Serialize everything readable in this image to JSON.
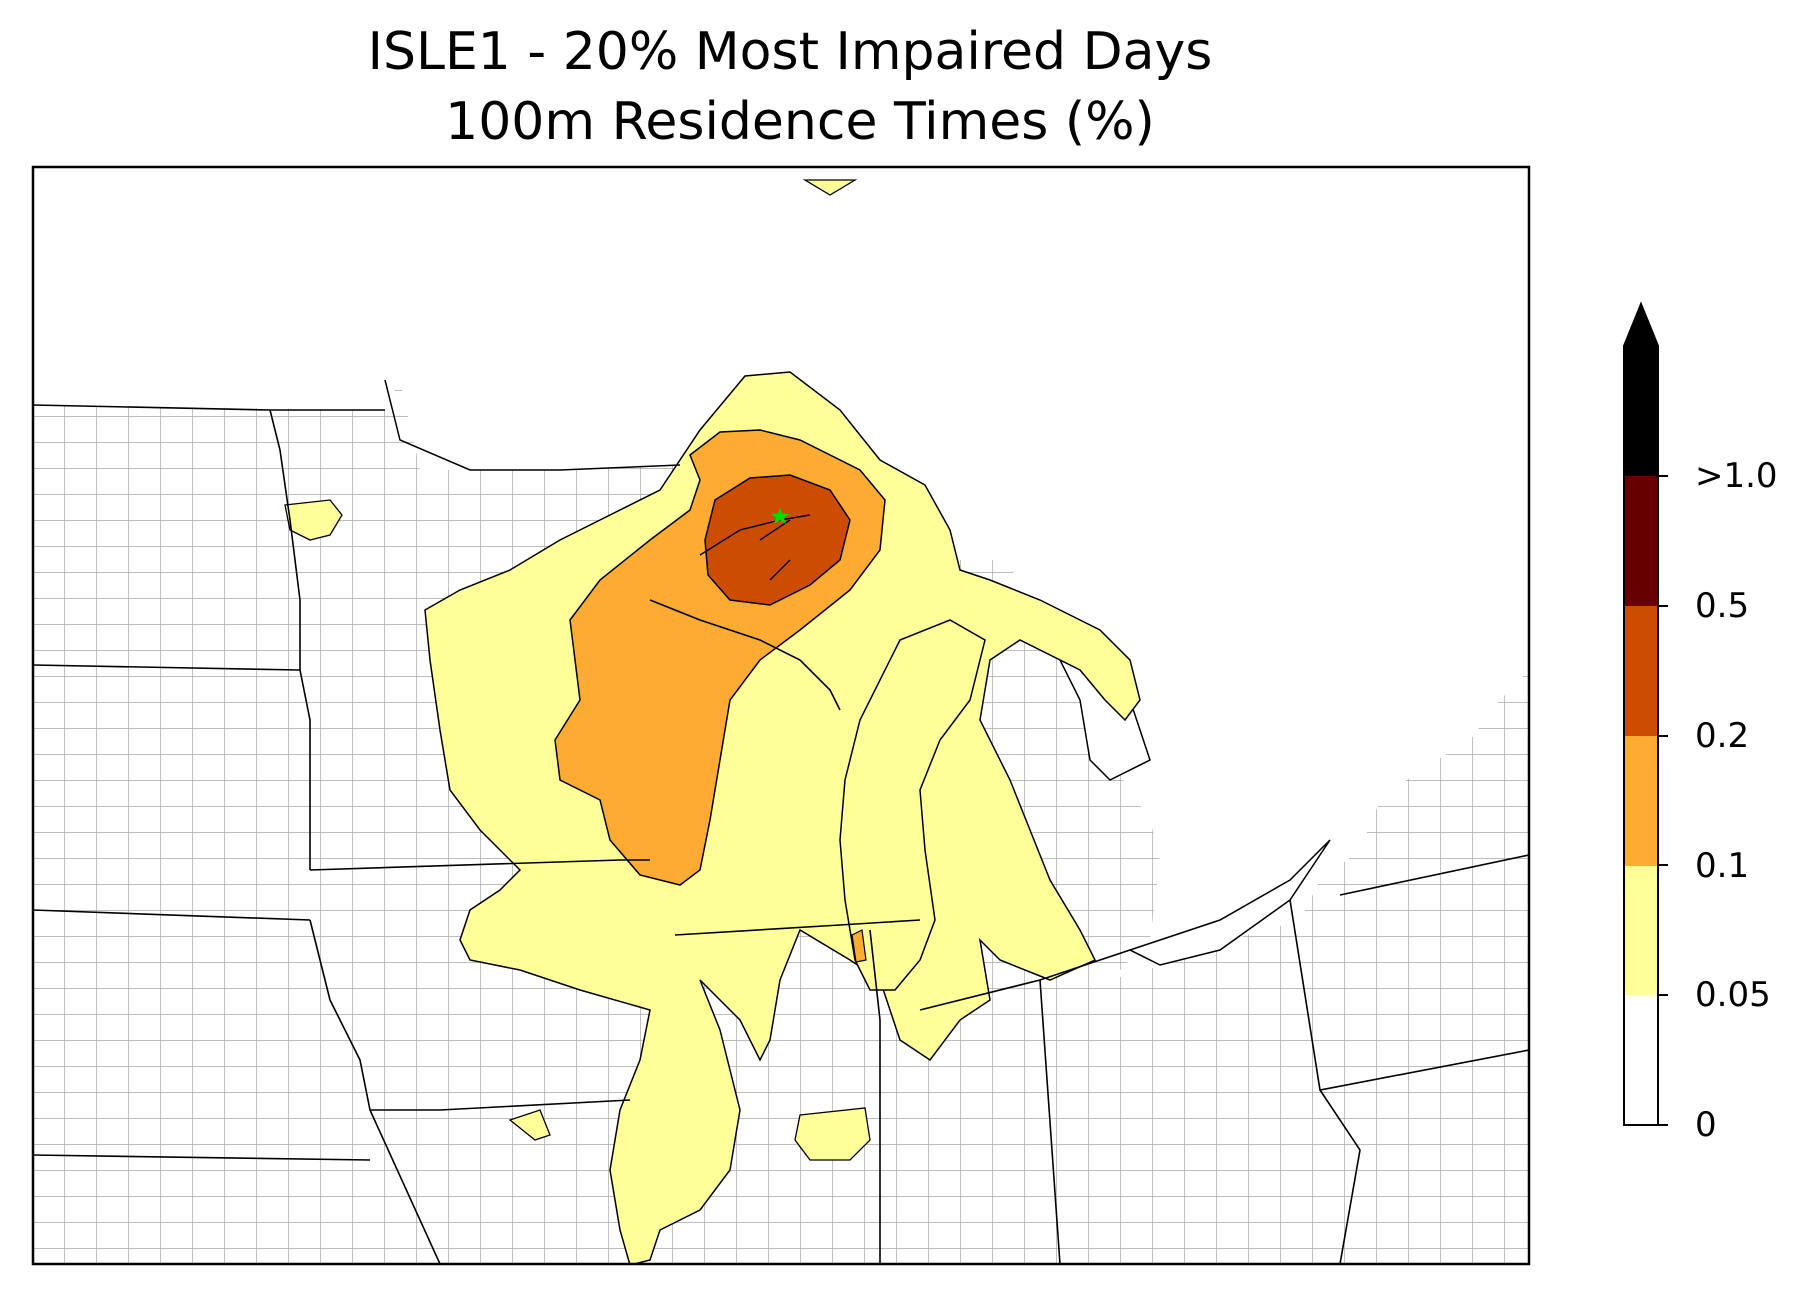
{
  "title": {
    "line1": "ISLE1 - 20% Most Impaired Days",
    "line2": "100m Residence Times (%)"
  },
  "map": {
    "site_marker": "green-star",
    "site_color": "#00dd00",
    "level_colors": {
      "0-0.05": "#ffffff",
      "0.05-0.1": "#ffff99",
      "0.1-0.2": "#feab33",
      "0.2-0.5": "#cc4c02",
      "0.5-1.0": "#660000",
      ">1.0": "#000000"
    }
  },
  "colorbar": {
    "ticks": [
      "0",
      "0.05",
      "0.1",
      "0.2",
      "0.5",
      ">1.0"
    ],
    "colors": [
      "#ffffff",
      "#ffff99",
      "#feab33",
      "#cc4c02",
      "#660000",
      "#000000"
    ],
    "extend": "max"
  }
}
